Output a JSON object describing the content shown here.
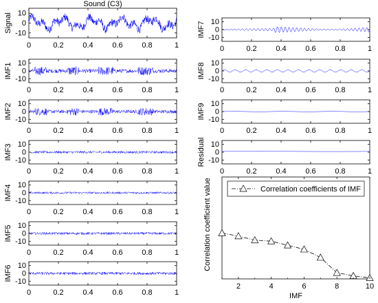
{
  "chart_data": [
    {
      "type": "line",
      "title": "Sound (C3)",
      "ylabel": "Signal",
      "xlim": [
        0,
        1
      ],
      "ylim": [
        -15,
        15
      ],
      "xticks": [
        "0",
        "0.2",
        "0.4",
        "0.6",
        "0.8",
        "1"
      ],
      "yticks": [
        "10",
        "0",
        "-10"
      ],
      "amplitude": 9,
      "series": [
        {
          "color": "#0000ff",
          "values": []
        }
      ]
    },
    {
      "type": "line",
      "ylabel": "IMF1",
      "xlim": [
        0,
        1
      ],
      "ylim": [
        -15,
        15
      ],
      "xticks": [
        "0",
        "0.2",
        "0.4",
        "0.6",
        "0.8",
        "1"
      ],
      "yticks": [
        "10",
        "0",
        "-10"
      ],
      "amplitude": 2.5,
      "series": [
        {
          "color": "#0000ff",
          "values": []
        }
      ]
    },
    {
      "type": "line",
      "ylabel": "IMF2",
      "xlim": [
        0,
        1
      ],
      "ylim": [
        -15,
        15
      ],
      "xticks": [
        "0",
        "0.2",
        "0.4",
        "0.6",
        "0.8",
        "1"
      ],
      "yticks": [
        "10",
        "0",
        "-10"
      ],
      "amplitude": 2.2,
      "series": [
        {
          "color": "#0000ff",
          "values": []
        }
      ]
    },
    {
      "type": "line",
      "ylabel": "IMF3",
      "xlim": [
        0,
        1
      ],
      "ylim": [
        -15,
        15
      ],
      "xticks": [
        "0",
        "0.2",
        "0.4",
        "0.6",
        "0.8",
        "1"
      ],
      "yticks": [
        "10",
        "0",
        "-10"
      ],
      "amplitude": 1.6,
      "series": [
        {
          "color": "#0000ff",
          "values": []
        }
      ]
    },
    {
      "type": "line",
      "ylabel": "IMF4",
      "xlim": [
        0,
        1
      ],
      "ylim": [
        -15,
        15
      ],
      "xticks": [
        "0",
        "0.2",
        "0.4",
        "0.6",
        "0.8",
        "1"
      ],
      "yticks": [
        "10",
        "0",
        "-10"
      ],
      "amplitude": 1.4,
      "series": [
        {
          "color": "#0000ff",
          "values": []
        }
      ]
    },
    {
      "type": "line",
      "ylabel": "IMF5",
      "xlim": [
        0,
        1
      ],
      "ylim": [
        -15,
        15
      ],
      "xticks": [
        "0",
        "0.2",
        "0.4",
        "0.6",
        "0.8",
        "1"
      ],
      "yticks": [
        "10",
        "0",
        "-10"
      ],
      "amplitude": 1.6,
      "series": [
        {
          "color": "#0000ff",
          "values": []
        }
      ]
    },
    {
      "type": "line",
      "ylabel": "IMF6",
      "xlim": [
        0,
        1
      ],
      "ylim": [
        -15,
        15
      ],
      "xticks": [
        "0",
        "0.2",
        "0.4",
        "0.6",
        "0.8",
        "1"
      ],
      "yticks": [
        "10",
        "0",
        "-10"
      ],
      "amplitude": 1.8,
      "series": [
        {
          "color": "#0000ff",
          "values": []
        }
      ]
    },
    {
      "type": "line",
      "ylabel": "IMF7",
      "xlim": [
        0,
        1
      ],
      "ylim": [
        -15,
        15
      ],
      "xticks": [
        "0",
        "0.2",
        "0.4",
        "0.6",
        "0.8",
        "1"
      ],
      "yticks": [
        "10",
        "0",
        "-10"
      ],
      "amplitude": 4,
      "series": [
        {
          "color": "#0000ff",
          "values": []
        }
      ]
    },
    {
      "type": "line",
      "ylabel": "IMF8",
      "xlim": [
        0,
        1
      ],
      "ylim": [
        -15,
        15
      ],
      "xticks": [
        "0",
        "0.2",
        "0.4",
        "0.6",
        "0.8",
        "1"
      ],
      "yticks": [
        "10",
        "0",
        "-10"
      ],
      "amplitude": 1.5,
      "series": [
        {
          "color": "#0000ff",
          "values": []
        }
      ]
    },
    {
      "type": "line",
      "ylabel": "IMF9",
      "xlim": [
        0,
        1
      ],
      "ylim": [
        -15,
        15
      ],
      "xticks": [
        "0",
        "0.2",
        "0.4",
        "0.6",
        "0.8",
        "1"
      ],
      "yticks": [
        "10",
        "0",
        "-10"
      ],
      "amplitude": 0.3,
      "series": [
        {
          "color": "#0000ff",
          "values": []
        }
      ]
    },
    {
      "type": "line",
      "ylabel": "Residual",
      "xlim": [
        0,
        1
      ],
      "ylim": [
        -15,
        15
      ],
      "xticks": [
        "0",
        "0.2",
        "0.4",
        "0.6",
        "0.8",
        "1"
      ],
      "yticks": [
        "10",
        "0",
        "-10"
      ],
      "amplitude": 0.2,
      "series": [
        {
          "color": "#0000ff",
          "values": []
        }
      ]
    },
    {
      "type": "line",
      "xlabel": "IMF",
      "ylabel": "Correlation coefficient value",
      "xlim": [
        1,
        10
      ],
      "ylim": [
        0,
        1
      ],
      "xticks": [
        "2",
        "4",
        "6",
        "8",
        "10"
      ],
      "legend": {
        "position": "top",
        "entries": [
          "Correlation coefficients of IMF"
        ]
      },
      "series": [
        {
          "name": "Correlation coefficients of IMF",
          "color": "#000000",
          "marker": "triangle",
          "line_style": "dash-dot",
          "x": [
            1,
            2,
            3,
            4,
            5,
            6,
            7,
            8,
            9,
            10
          ],
          "values": [
            0.45,
            0.42,
            0.38,
            0.37,
            0.33,
            0.29,
            0.21,
            0.06,
            0.03,
            0.01
          ]
        }
      ]
    }
  ]
}
